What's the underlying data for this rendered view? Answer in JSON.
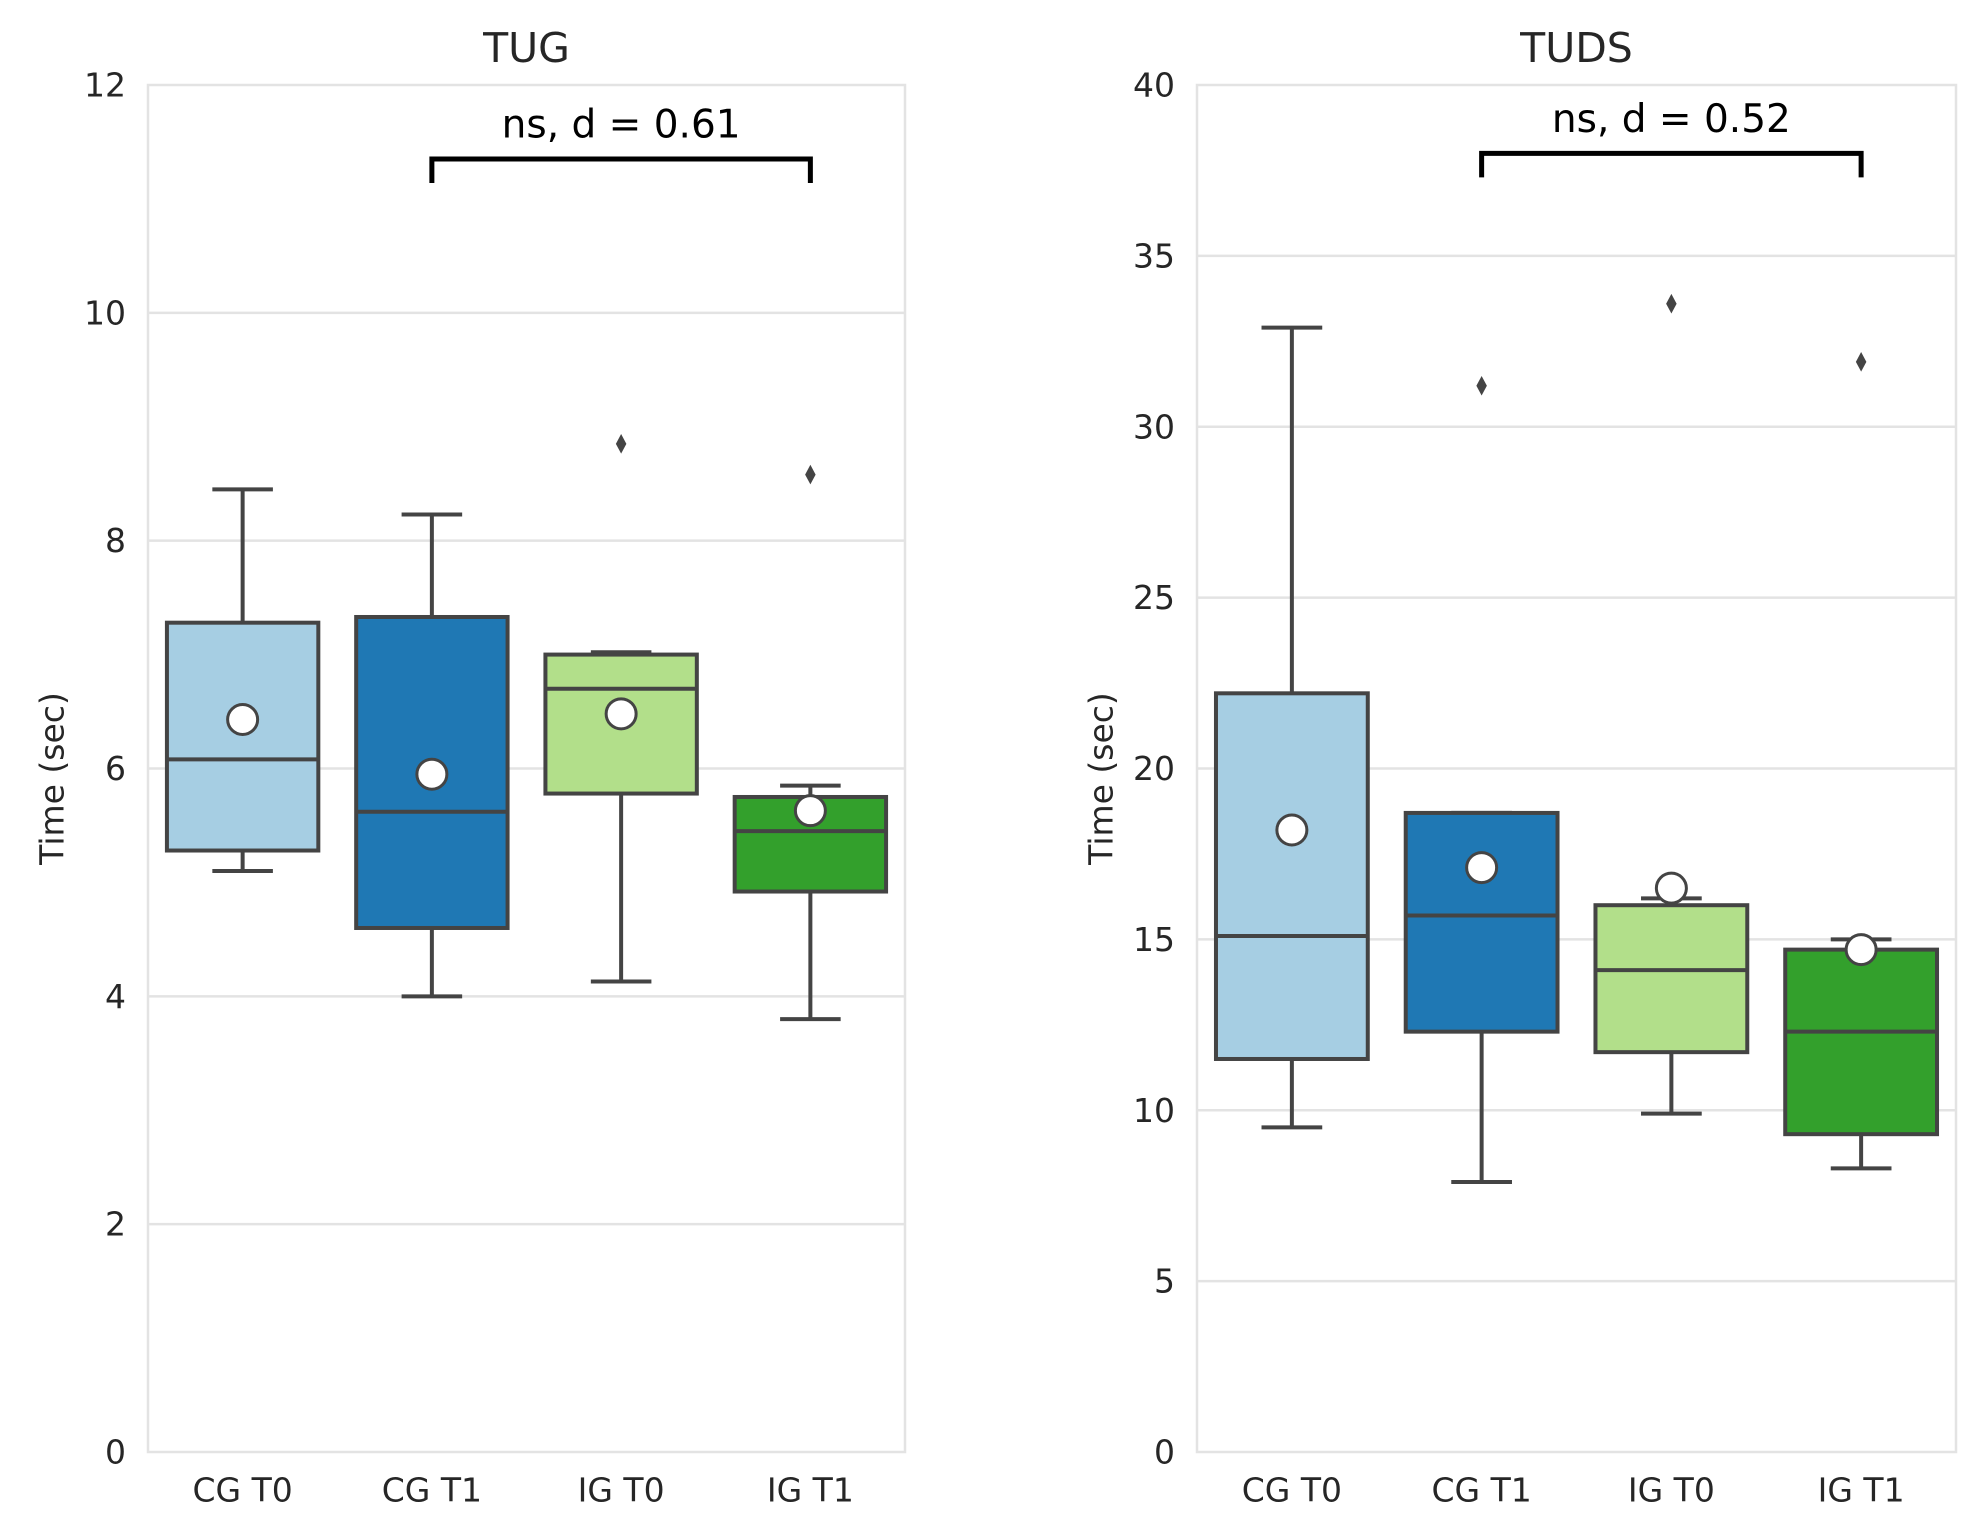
{
  "chart_data": [
    {
      "type": "box",
      "title": "TUG",
      "xlabel": "",
      "ylabel": "Time (sec)",
      "ylim": [
        0,
        12
      ],
      "yticks": [
        0,
        2,
        4,
        6,
        8,
        10,
        12
      ],
      "grid": true,
      "categories": [
        "CG T0",
        "CG T1",
        "IG T0",
        "IG T1"
      ],
      "colors": [
        "#a6cee3",
        "#1f78b4",
        "#b2df8a",
        "#33a02c"
      ],
      "boxes": [
        {
          "whisker_low": 5.1,
          "q1": 5.28,
          "median": 6.08,
          "q3": 7.28,
          "whisker_high": 8.45,
          "mean": 6.43,
          "outliers": []
        },
        {
          "whisker_low": 4.0,
          "q1": 4.6,
          "median": 5.62,
          "q3": 7.33,
          "whisker_high": 8.23,
          "mean": 5.95,
          "outliers": []
        },
        {
          "whisker_low": 4.13,
          "q1": 5.78,
          "median": 6.7,
          "q3": 7.0,
          "whisker_high": 7.02,
          "mean": 6.48,
          "outliers": [
            8.85
          ]
        },
        {
          "whisker_low": 3.8,
          "q1": 4.92,
          "median": 5.45,
          "q3": 5.75,
          "whisker_high": 5.85,
          "mean": 5.63,
          "outliers": [
            8.58
          ]
        }
      ],
      "annotations": [
        {
          "text": "ns, d = 0.61",
          "from": "CG T1",
          "to": "IG T1",
          "level": 11.35
        }
      ]
    },
    {
      "type": "box",
      "title": "TUDS",
      "xlabel": "",
      "ylabel": "Time (sec)",
      "ylim": [
        0,
        40
      ],
      "yticks": [
        0,
        5,
        10,
        15,
        20,
        25,
        30,
        35,
        40
      ],
      "grid": true,
      "categories": [
        "CG T0",
        "CG T1",
        "IG T0",
        "IG T1"
      ],
      "colors": [
        "#a6cee3",
        "#1f78b4",
        "#b2df8a",
        "#33a02c"
      ],
      "boxes": [
        {
          "whisker_low": 9.5,
          "q1": 11.5,
          "median": 15.1,
          "q3": 22.2,
          "whisker_high": 32.9,
          "mean": 18.2,
          "outliers": []
        },
        {
          "whisker_low": 7.9,
          "q1": 12.3,
          "median": 15.7,
          "q3": 18.7,
          "whisker_high": 18.7,
          "mean": 17.1,
          "outliers": [
            31.2
          ]
        },
        {
          "whisker_low": 9.9,
          "q1": 11.7,
          "median": 14.1,
          "q3": 16.0,
          "whisker_high": 16.2,
          "mean": 16.5,
          "outliers": [
            33.6
          ]
        },
        {
          "whisker_low": 8.3,
          "q1": 9.3,
          "median": 12.3,
          "q3": 14.7,
          "whisker_high": 15.0,
          "mean": 14.7,
          "outliers": [
            31.9
          ]
        }
      ],
      "annotations": [
        {
          "text": "ns, d = 0.52",
          "from": "CG T1",
          "to": "IG T1",
          "level": 38.0
        }
      ]
    }
  ]
}
